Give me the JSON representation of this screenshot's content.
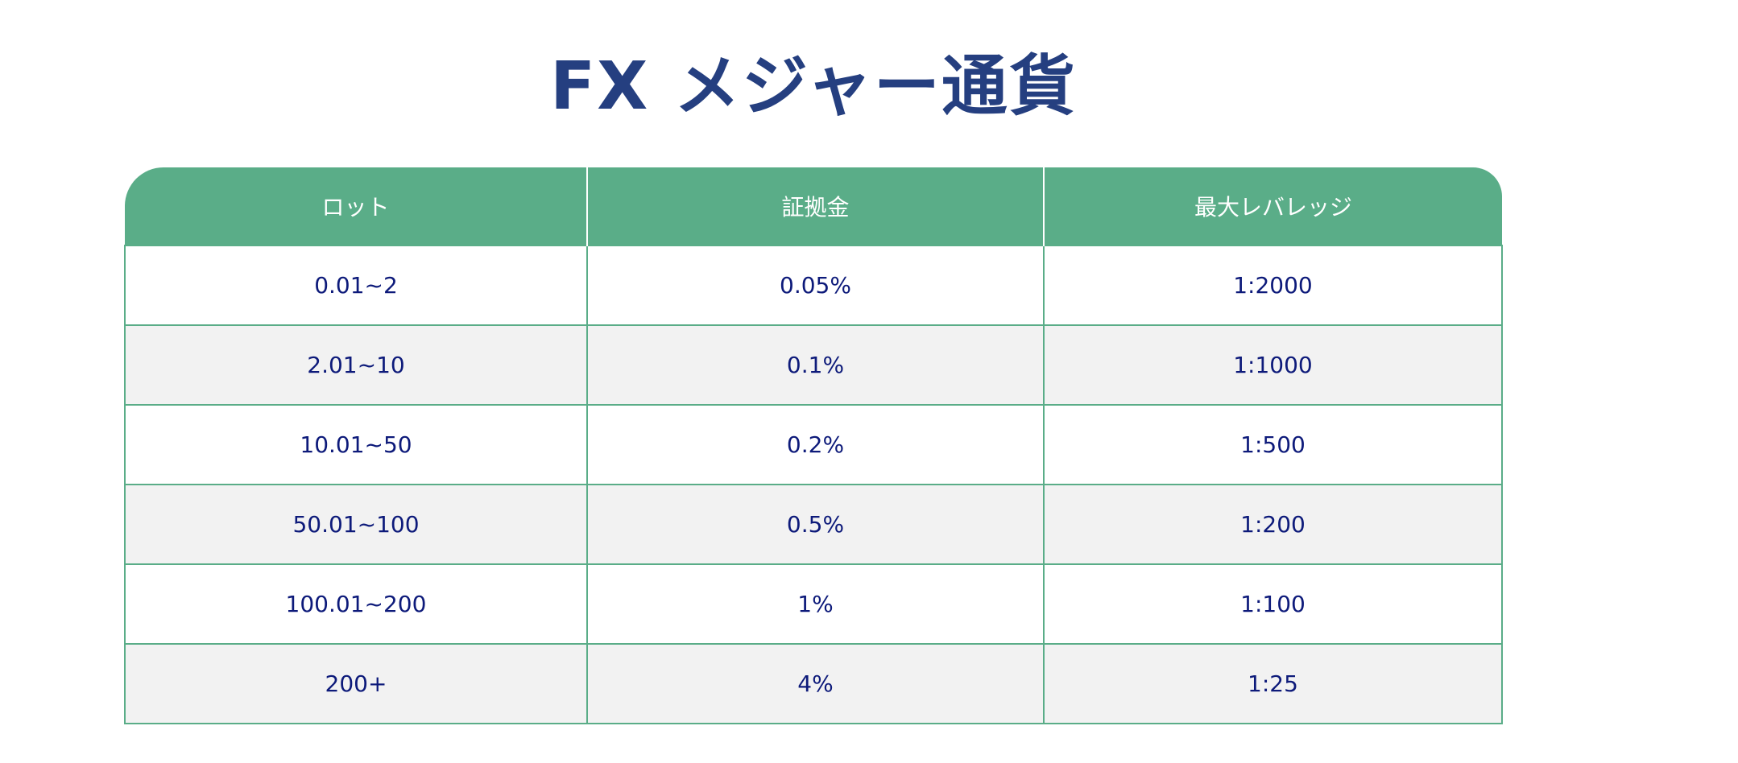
{
  "title": "FX メジャー通貨",
  "table": {
    "headers": [
      "ロット",
      "証拠金",
      "最大レバレッジ"
    ],
    "rows": [
      [
        "0.01~2",
        "0.05%",
        "1:2000"
      ],
      [
        "2.01~10",
        "0.1%",
        "1:1000"
      ],
      [
        "10.01~50",
        "0.2%",
        "1:500"
      ],
      [
        "50.01~100",
        "0.5%",
        "1:200"
      ],
      [
        "100.01~200",
        "1%",
        "1:100"
      ],
      [
        "200+",
        "4%",
        "1:25"
      ]
    ]
  },
  "colors": {
    "header": "#5aad88",
    "title": "#253f80",
    "text": "#0d1a7a",
    "alt_row": "#f2f2f2"
  }
}
